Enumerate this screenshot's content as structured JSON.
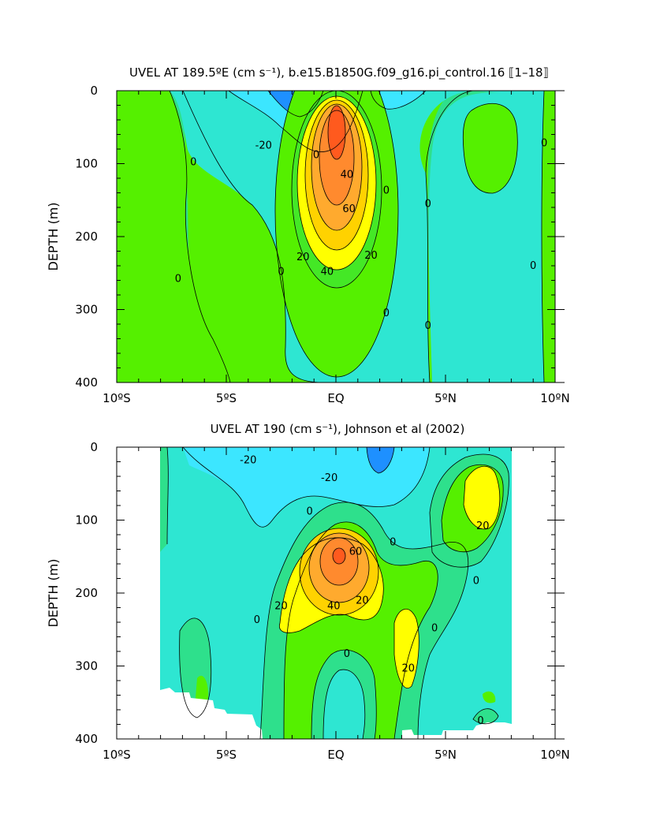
{
  "chart_data": [
    {
      "type": "contour",
      "title": "UVEL AT 189.5ºE (cm s⁻¹), b.e15.B1850G.f09_g16.pi_control.16 ⟦1–18⟧",
      "xlabel": "",
      "ylabel": "DEPTH (m)",
      "xlim": [
        -10,
        10
      ],
      "ylim": [
        400,
        0
      ],
      "x_ticks": [
        -10,
        -5,
        0,
        5,
        10
      ],
      "x_tick_labels": [
        "10ºS",
        "5ºS",
        "EQ",
        "5ºN",
        "10ºN"
      ],
      "y_ticks": [
        0,
        100,
        200,
        300,
        400
      ],
      "y_tick_labels": [
        "0",
        "100",
        "200",
        "300",
        "400"
      ],
      "contour_interval": 10,
      "level_colors": {
        "-30": "#1e90ff",
        "-20": "#3ce6ff",
        "-10": "#2ee6d2",
        "0": "#2ee08c",
        "10": "#55f000",
        "20": "#ffff00",
        "30": "#ffd200",
        "40": "#ffaa2e",
        "50": "#ff8a2e",
        "60": "#ff5a1e"
      },
      "contour_labels": [
        {
          "text": "-20",
          "x": -3.3,
          "y": 75
        },
        {
          "text": "0",
          "x": -6.5,
          "y": 98
        },
        {
          "text": "0",
          "x": -7.2,
          "y": 258
        },
        {
          "text": "0",
          "x": -2.5,
          "y": 248
        },
        {
          "text": "0",
          "x": -0.9,
          "y": 88
        },
        {
          "text": "40",
          "x": 0.5,
          "y": 115
        },
        {
          "text": "60",
          "x": 0.6,
          "y": 162
        },
        {
          "text": "20",
          "x": -1.5,
          "y": 228
        },
        {
          "text": "40",
          "x": -0.4,
          "y": 248
        },
        {
          "text": "20",
          "x": 1.6,
          "y": 226
        },
        {
          "text": "0",
          "x": 2.3,
          "y": 137
        },
        {
          "text": "0",
          "x": 2.3,
          "y": 305
        },
        {
          "text": "0",
          "x": 4.2,
          "y": 155
        },
        {
          "text": "0",
          "x": 4.2,
          "y": 322
        },
        {
          "text": "0",
          "x": 9.0,
          "y": 240
        },
        {
          "text": "0",
          "x": 9.5,
          "y": 72
        }
      ]
    },
    {
      "type": "contour",
      "title": "UVEL AT 190 (cm s⁻¹), Johnson et al (2002)",
      "xlabel": "",
      "ylabel": "DEPTH (m)",
      "xlim": [
        -10,
        10
      ],
      "ylim": [
        400,
        0
      ],
      "x_ticks": [
        -10,
        -5,
        0,
        5,
        10
      ],
      "x_tick_labels": [
        "10ºS",
        "5ºS",
        "EQ",
        "5ºN",
        "10ºN"
      ],
      "y_ticks": [
        0,
        100,
        200,
        300,
        400
      ],
      "y_tick_labels": [
        "0",
        "100",
        "200",
        "300",
        "400"
      ],
      "data_lon_range": [
        -8,
        8
      ],
      "contour_interval": 10,
      "level_colors": {
        "-30": "#1e90ff",
        "-20": "#3ce6ff",
        "-10": "#2ee6d2",
        "0": "#2ee08c",
        "10": "#55f000",
        "20": "#ffff00",
        "30": "#ffd200",
        "40": "#ffaa2e",
        "50": "#ff8a2e",
        "60": "#ff5a1e"
      },
      "contour_labels": [
        {
          "text": "-20",
          "x": -4.0,
          "y": 18
        },
        {
          "text": "-20",
          "x": -0.3,
          "y": 42
        },
        {
          "text": "0",
          "x": -1.2,
          "y": 88
        },
        {
          "text": "60",
          "x": 0.9,
          "y": 143
        },
        {
          "text": "20",
          "x": -2.5,
          "y": 218
        },
        {
          "text": "40",
          "x": -0.1,
          "y": 218
        },
        {
          "text": "20",
          "x": 1.2,
          "y": 210
        },
        {
          "text": "0",
          "x": 2.6,
          "y": 130
        },
        {
          "text": "0",
          "x": -3.6,
          "y": 237
        },
        {
          "text": "0",
          "x": 0.5,
          "y": 283
        },
        {
          "text": "20",
          "x": 3.3,
          "y": 303
        },
        {
          "text": "0",
          "x": 4.5,
          "y": 248
        },
        {
          "text": "20",
          "x": 6.7,
          "y": 108
        },
        {
          "text": "0",
          "x": 6.4,
          "y": 183
        },
        {
          "text": "0",
          "x": 6.6,
          "y": 375
        }
      ]
    }
  ]
}
